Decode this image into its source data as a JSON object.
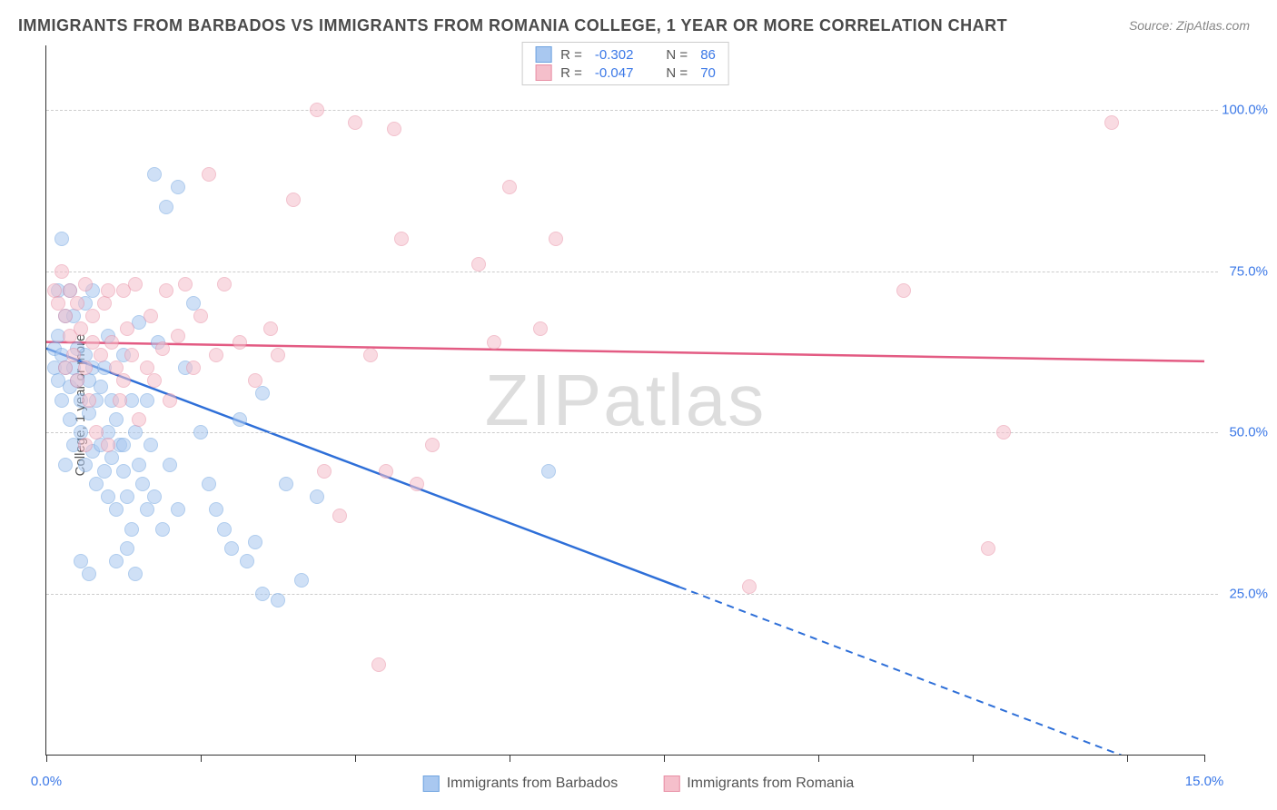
{
  "title": "IMMIGRANTS FROM BARBADOS VS IMMIGRANTS FROM ROMANIA COLLEGE, 1 YEAR OR MORE CORRELATION CHART",
  "source": "Source: ZipAtlas.com",
  "watermark": "ZIPatlas",
  "chart": {
    "type": "scatter",
    "ylabel": "College, 1 year or more",
    "xlim": [
      0,
      15
    ],
    "ylim": [
      0,
      110
    ],
    "xticks": [
      0,
      2,
      4,
      6,
      8,
      10,
      12,
      14,
      15
    ],
    "xtick_labels_shown": {
      "0": "0.0%",
      "15": "15.0%"
    },
    "yticks": [
      25,
      50,
      75,
      100
    ],
    "ytick_labels": {
      "25": "25.0%",
      "50": "50.0%",
      "75": "75.0%",
      "100": "100.0%"
    },
    "background_color": "#ffffff",
    "grid_color": "#cccccc",
    "axis_color": "#333333",
    "tick_label_color": "#3b78e7",
    "marker_radius": 8,
    "marker_opacity": 0.55,
    "series": [
      {
        "name": "Immigrants from Barbados",
        "fill_color": "#a9c8f0",
        "stroke_color": "#6fa3e0",
        "line_color": "#2e6fd8",
        "R": "-0.302",
        "N": "86",
        "trend": {
          "x1": 0,
          "y1": 63,
          "x2": 8.2,
          "y2": 26,
          "x2_ext": 15,
          "y2_ext": -5
        },
        "points": [
          [
            0.1,
            63
          ],
          [
            0.1,
            60
          ],
          [
            0.15,
            65
          ],
          [
            0.15,
            58
          ],
          [
            0.2,
            62
          ],
          [
            0.2,
            55
          ],
          [
            0.25,
            60
          ],
          [
            0.25,
            68
          ],
          [
            0.3,
            57
          ],
          [
            0.3,
            52
          ],
          [
            0.35,
            60
          ],
          [
            0.35,
            48
          ],
          [
            0.4,
            58
          ],
          [
            0.4,
            63
          ],
          [
            0.45,
            55
          ],
          [
            0.45,
            50
          ],
          [
            0.5,
            62
          ],
          [
            0.5,
            45
          ],
          [
            0.55,
            58
          ],
          [
            0.55,
            53
          ],
          [
            0.6,
            60
          ],
          [
            0.6,
            47
          ],
          [
            0.65,
            42
          ],
          [
            0.65,
            55
          ],
          [
            0.7,
            48
          ],
          [
            0.7,
            57
          ],
          [
            0.75,
            44
          ],
          [
            0.75,
            60
          ],
          [
            0.8,
            50
          ],
          [
            0.8,
            40
          ],
          [
            0.85,
            55
          ],
          [
            0.85,
            46
          ],
          [
            0.9,
            38
          ],
          [
            0.9,
            52
          ],
          [
            0.95,
            48
          ],
          [
            1.0,
            44
          ],
          [
            1.0,
            62
          ],
          [
            1.05,
            40
          ],
          [
            1.1,
            55
          ],
          [
            1.1,
            35
          ],
          [
            1.15,
            50
          ],
          [
            1.2,
            45
          ],
          [
            1.25,
            42
          ],
          [
            1.3,
            38
          ],
          [
            1.35,
            48
          ],
          [
            1.4,
            90
          ],
          [
            1.4,
            40
          ],
          [
            1.5,
            35
          ],
          [
            1.55,
            85
          ],
          [
            1.6,
            45
          ],
          [
            1.7,
            88
          ],
          [
            1.7,
            38
          ],
          [
            1.8,
            60
          ],
          [
            1.9,
            70
          ],
          [
            2.0,
            50
          ],
          [
            2.1,
            42
          ],
          [
            2.2,
            38
          ],
          [
            2.3,
            35
          ],
          [
            2.4,
            32
          ],
          [
            2.5,
            52
          ],
          [
            2.6,
            30
          ],
          [
            2.7,
            33
          ],
          [
            2.8,
            25
          ],
          [
            2.8,
            56
          ],
          [
            3.0,
            24
          ],
          [
            3.1,
            42
          ],
          [
            3.3,
            27
          ],
          [
            3.5,
            40
          ],
          [
            0.15,
            72
          ],
          [
            0.3,
            72
          ],
          [
            0.45,
            30
          ],
          [
            0.5,
            70
          ],
          [
            0.6,
            72
          ],
          [
            0.55,
            28
          ],
          [
            0.8,
            65
          ],
          [
            0.9,
            30
          ],
          [
            1.0,
            48
          ],
          [
            1.05,
            32
          ],
          [
            1.15,
            28
          ],
          [
            1.2,
            67
          ],
          [
            1.3,
            55
          ],
          [
            1.45,
            64
          ],
          [
            0.2,
            80
          ],
          [
            0.35,
            68
          ],
          [
            0.25,
            45
          ],
          [
            6.5,
            44
          ]
        ]
      },
      {
        "name": "Immigrants from Romania",
        "fill_color": "#f5bfcb",
        "stroke_color": "#e88fa5",
        "line_color": "#e35b83",
        "R": "-0.047",
        "N": "70",
        "trend": {
          "x1": 0,
          "y1": 64,
          "x2": 15,
          "y2": 61
        },
        "points": [
          [
            0.1,
            72
          ],
          [
            0.15,
            70
          ],
          [
            0.2,
            75
          ],
          [
            0.25,
            68
          ],
          [
            0.3,
            65
          ],
          [
            0.3,
            72
          ],
          [
            0.35,
            62
          ],
          [
            0.4,
            70
          ],
          [
            0.4,
            58
          ],
          [
            0.45,
            66
          ],
          [
            0.5,
            60
          ],
          [
            0.5,
            73
          ],
          [
            0.55,
            55
          ],
          [
            0.6,
            68
          ],
          [
            0.6,
            64
          ],
          [
            0.65,
            50
          ],
          [
            0.7,
            62
          ],
          [
            0.75,
            70
          ],
          [
            0.8,
            48
          ],
          [
            0.85,
            64
          ],
          [
            0.9,
            60
          ],
          [
            0.95,
            55
          ],
          [
            1.0,
            72
          ],
          [
            1.05,
            66
          ],
          [
            1.1,
            62
          ],
          [
            1.15,
            73
          ],
          [
            1.2,
            52
          ],
          [
            1.3,
            60
          ],
          [
            1.35,
            68
          ],
          [
            1.4,
            58
          ],
          [
            1.5,
            63
          ],
          [
            1.55,
            72
          ],
          [
            1.6,
            55
          ],
          [
            1.7,
            65
          ],
          [
            1.8,
            73
          ],
          [
            1.9,
            60
          ],
          [
            2.0,
            68
          ],
          [
            2.1,
            90
          ],
          [
            2.2,
            62
          ],
          [
            2.3,
            73
          ],
          [
            2.5,
            64
          ],
          [
            2.7,
            58
          ],
          [
            2.9,
            66
          ],
          [
            3.0,
            62
          ],
          [
            3.2,
            86
          ],
          [
            3.5,
            100
          ],
          [
            3.6,
            44
          ],
          [
            3.8,
            37
          ],
          [
            4.0,
            98
          ],
          [
            4.2,
            62
          ],
          [
            4.4,
            44
          ],
          [
            4.5,
            97
          ],
          [
            4.6,
            80
          ],
          [
            4.3,
            14
          ],
          [
            4.8,
            42
          ],
          [
            5.0,
            48
          ],
          [
            5.6,
            76
          ],
          [
            5.8,
            64
          ],
          [
            6.0,
            88
          ],
          [
            6.4,
            66
          ],
          [
            6.6,
            80
          ],
          [
            9.1,
            26
          ],
          [
            11.1,
            72
          ],
          [
            12.2,
            32
          ],
          [
            12.4,
            50
          ],
          [
            13.8,
            98
          ],
          [
            0.25,
            60
          ],
          [
            0.5,
            48
          ],
          [
            0.8,
            72
          ],
          [
            1.0,
            58
          ]
        ]
      }
    ]
  },
  "legend_top": {
    "R_label": "R =",
    "N_label": "N ="
  },
  "legend_bottom": {
    "items": [
      {
        "label": "Immigrants from Barbados",
        "fill": "#a9c8f0",
        "stroke": "#6fa3e0"
      },
      {
        "label": "Immigrants from Romania",
        "fill": "#f5bfcb",
        "stroke": "#e88fa5"
      }
    ]
  }
}
